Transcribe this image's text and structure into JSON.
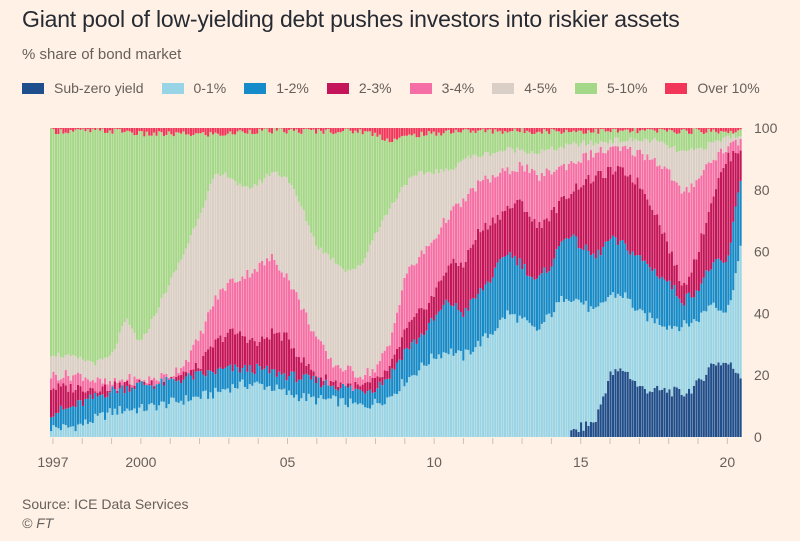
{
  "header": {
    "title": "Giant pool of low-yielding debt pushes investors into riskier assets",
    "subtitle": "% share of bond market"
  },
  "footer": {
    "source": "Source: ICE Data Services",
    "copyright": "© FT"
  },
  "chart_data": {
    "type": "area",
    "subtype": "stacked-bar-100",
    "title": "Giant pool of low-yielding debt pushes investors into riskier assets",
    "ylabel": "% share of bond market",
    "xlabel": "",
    "ylim": [
      0,
      100
    ],
    "xlim": [
      1996.9,
      2020.5
    ],
    "y_ticks": [
      0,
      20,
      40,
      60,
      80,
      100
    ],
    "y_axis_side": "right",
    "x_ticks": [
      {
        "value": 1997,
        "label": "1997"
      },
      {
        "value": 2000,
        "label": "2000"
      },
      {
        "value": 2005,
        "label": "05"
      },
      {
        "value": 2010,
        "label": "10"
      },
      {
        "value": 2015,
        "label": "15"
      },
      {
        "value": 2020,
        "label": "20"
      }
    ],
    "x_minor_ticks": [
      1998,
      1999,
      2001,
      2002,
      2003,
      2004,
      2006,
      2007,
      2008,
      2009,
      2011,
      2012,
      2013,
      2014,
      2016,
      2017,
      2018,
      2019
    ],
    "grid": true,
    "legend_position": "top-left",
    "series": [
      {
        "name": "Sub-zero yield",
        "color": "#1f4e8c"
      },
      {
        "name": "0-1%",
        "color": "#96d4e6"
      },
      {
        "name": "1-2%",
        "color": "#168bc9"
      },
      {
        "name": "2-3%",
        "color": "#c4145a"
      },
      {
        "name": "3-4%",
        "color": "#f56ea6"
      },
      {
        "name": "4-5%",
        "color": "#d9cfc6"
      },
      {
        "name": "5-10%",
        "color": "#a4d889"
      },
      {
        "name": "Over 10%",
        "color": "#f2365a"
      }
    ],
    "cumulative_note": "Each row gives the cumulative top (%) of each series from bottom: [Sub-zero, 0-1%, 1-2%, 2-3%, 3-4%, 4-5%, 5-10%, Over 10%]",
    "x": [
      1997.0,
      1997.5,
      1998.0,
      1998.5,
      1999.0,
      1999.5,
      2000.0,
      2000.5,
      2001.0,
      2001.5,
      2002.0,
      2002.5,
      2003.0,
      2003.5,
      2004.0,
      2004.5,
      2005.0,
      2005.5,
      2006.0,
      2006.5,
      2007.0,
      2007.5,
      2008.0,
      2008.5,
      2009.0,
      2009.5,
      2010.0,
      2010.5,
      2011.0,
      2011.5,
      2012.0,
      2012.5,
      2013.0,
      2013.5,
      2014.0,
      2014.5,
      2015.0,
      2015.5,
      2016.0,
      2016.5,
      2017.0,
      2017.5,
      2018.0,
      2018.5,
      2019.0,
      2019.5,
      2020.0,
      2020.5
    ],
    "cumulative": [
      [
        0,
        3,
        8,
        16,
        20,
        27,
        99,
        100
      ],
      [
        0,
        3,
        9,
        16,
        20,
        26,
        99,
        100
      ],
      [
        0,
        4,
        11,
        16,
        20,
        25,
        99,
        100
      ],
      [
        0,
        6,
        13,
        16,
        18,
        24,
        99,
        100
      ],
      [
        0,
        8,
        15,
        16,
        17,
        26,
        99,
        100
      ],
      [
        0,
        9,
        16,
        17,
        19,
        38,
        99,
        100
      ],
      [
        0,
        9,
        17,
        17,
        18,
        30,
        98,
        100
      ],
      [
        0,
        10,
        17,
        18,
        19,
        40,
        98,
        100
      ],
      [
        0,
        11,
        18,
        19,
        20,
        50,
        98,
        100
      ],
      [
        0,
        12,
        19,
        20,
        24,
        60,
        98,
        100
      ],
      [
        0,
        13,
        20,
        23,
        32,
        72,
        98,
        100
      ],
      [
        0,
        14,
        21,
        30,
        44,
        84,
        98,
        100
      ],
      [
        0,
        16,
        22,
        34,
        50,
        85,
        98,
        100
      ],
      [
        0,
        17,
        22,
        33,
        52,
        80,
        99,
        100
      ],
      [
        0,
        17,
        22,
        30,
        55,
        82,
        99,
        100
      ],
      [
        0,
        16,
        21,
        34,
        58,
        86,
        99,
        100
      ],
      [
        0,
        14,
        20,
        32,
        52,
        84,
        99,
        100
      ],
      [
        0,
        13,
        19,
        25,
        42,
        74,
        99,
        100
      ],
      [
        0,
        12,
        18,
        20,
        32,
        62,
        99,
        100
      ],
      [
        0,
        12,
        17,
        18,
        24,
        58,
        99,
        100
      ],
      [
        0,
        11,
        16,
        17,
        22,
        54,
        99,
        100
      ],
      [
        0,
        10,
        15,
        16,
        20,
        55,
        99,
        100
      ],
      [
        0,
        11,
        16,
        18,
        22,
        66,
        98,
        100
      ],
      [
        0,
        13,
        20,
        22,
        30,
        74,
        96,
        100
      ],
      [
        0,
        18,
        28,
        34,
        52,
        82,
        97,
        100
      ],
      [
        0,
        22,
        32,
        40,
        58,
        85,
        98,
        100
      ],
      [
        0,
        26,
        38,
        46,
        64,
        86,
        98,
        100
      ],
      [
        0,
        28,
        44,
        56,
        72,
        86,
        99,
        100
      ],
      [
        0,
        26,
        40,
        56,
        76,
        90,
        99,
        100
      ],
      [
        0,
        30,
        46,
        66,
        82,
        91,
        99,
        100
      ],
      [
        0,
        34,
        52,
        70,
        84,
        92,
        99,
        100
      ],
      [
        0,
        40,
        60,
        74,
        86,
        93,
        99,
        100
      ],
      [
        0,
        38,
        56,
        76,
        88,
        93,
        99,
        100
      ],
      [
        0,
        34,
        50,
        68,
        84,
        92,
        99,
        100
      ],
      [
        0,
        40,
        56,
        72,
        86,
        93,
        99,
        100
      ],
      [
        0,
        46,
        66,
        78,
        88,
        94,
        99,
        100
      ],
      [
        3,
        44,
        62,
        82,
        90,
        95,
        99,
        100
      ],
      [
        5,
        40,
        58,
        84,
        92,
        95,
        99,
        100
      ],
      [
        20,
        46,
        64,
        86,
        93,
        96,
        99,
        100
      ],
      [
        22,
        46,
        62,
        86,
        93,
        96,
        99,
        100
      ],
      [
        16,
        40,
        58,
        82,
        92,
        96,
        99,
        100
      ],
      [
        15,
        38,
        54,
        74,
        90,
        96,
        99,
        100
      ],
      [
        15,
        36,
        50,
        62,
        86,
        94,
        99,
        100
      ],
      [
        14,
        36,
        44,
        48,
        78,
        92,
        99,
        100
      ],
      [
        17,
        38,
        48,
        60,
        84,
        93,
        99,
        100
      ],
      [
        24,
        44,
        56,
        78,
        90,
        95,
        99,
        100
      ],
      [
        24,
        40,
        56,
        90,
        94,
        97,
        99,
        100
      ],
      [
        20,
        62,
        86,
        94,
        96,
        98,
        99,
        100
      ]
    ]
  }
}
